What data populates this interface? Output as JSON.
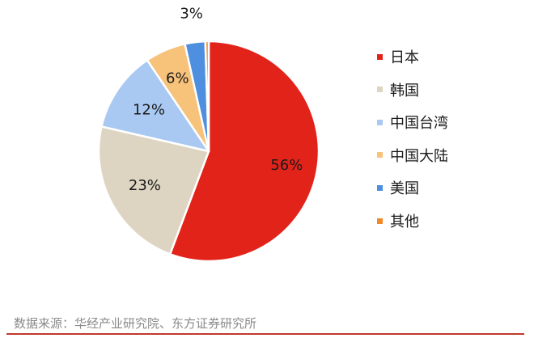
{
  "chart_data": {
    "type": "pie",
    "title": "",
    "series": [
      {
        "name": "日本",
        "value": 56,
        "label": "56%",
        "color": "#e2231a"
      },
      {
        "name": "韩国",
        "value": 23,
        "label": "23%",
        "color": "#ddd5c1"
      },
      {
        "name": "中国台湾",
        "value": 12,
        "label": "12%",
        "color": "#a9c9f2"
      },
      {
        "name": "中国大陆",
        "value": 6,
        "label": "6%",
        "color": "#f7c27a"
      },
      {
        "name": "美国",
        "value": 3,
        "label": "3%",
        "color": "#4f8fe0"
      },
      {
        "name": "其他",
        "value": 0.5,
        "label": "",
        "color": "#f0892b"
      }
    ],
    "legend_position": "right"
  },
  "source_text": "数据来源：华经产业研究院、东方证券研究所",
  "footer_rule_color": "#c0392b"
}
